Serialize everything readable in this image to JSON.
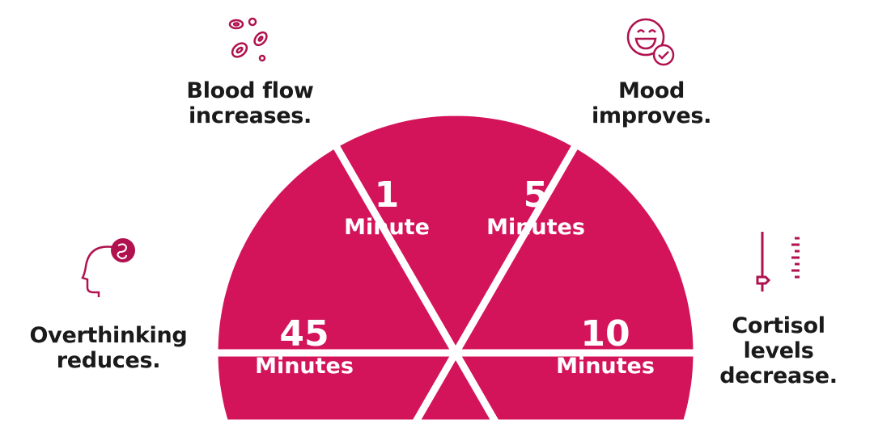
{
  "colors": {
    "segment": "#d4145a",
    "divider": "#ffffff",
    "text": "#1a1a1a",
    "icon": "#b0124f"
  },
  "segments": [
    {
      "value": "1",
      "unit": "Minute"
    },
    {
      "value": "5",
      "unit": "Minutes"
    },
    {
      "value": "10",
      "unit": "Minutes"
    },
    {
      "value": "45",
      "unit": "Minutes"
    }
  ],
  "captions": {
    "blood": {
      "icon": "blood-cells-icon",
      "lines": [
        "Blood flow",
        "increases."
      ]
    },
    "mood": {
      "icon": "smiley-check-icon",
      "lines": [
        "Mood",
        "improves."
      ]
    },
    "overthinking": {
      "icon": "head-tangle-icon",
      "lines": [
        "Overthinking",
        "reduces."
      ]
    },
    "cortisol": {
      "icon": "level-slider-icon",
      "lines": [
        "Cortisol",
        "levels",
        "decrease."
      ]
    }
  }
}
